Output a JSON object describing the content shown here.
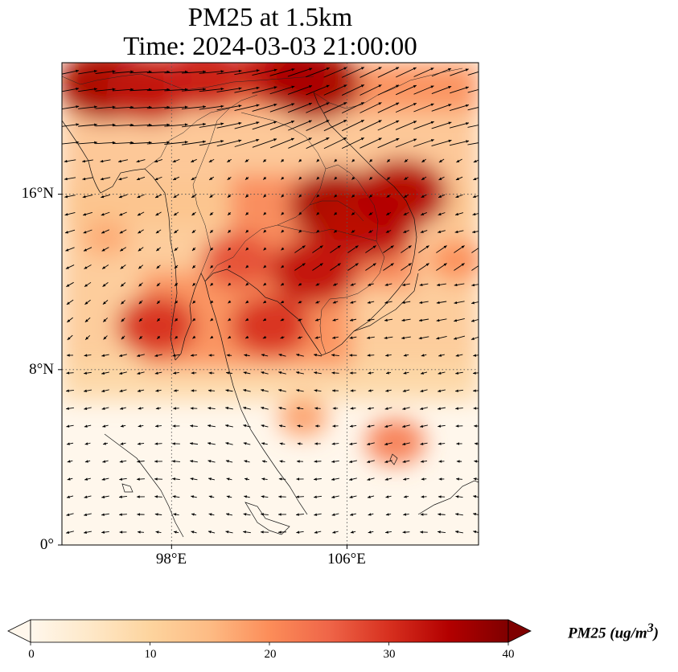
{
  "title_line1": "PM25 at 1.5km",
  "title_line2": "Time: 2024-03-03 21:00:00",
  "lat_ticks": [
    {
      "label": "16°N",
      "lat": 16
    },
    {
      "label": "8°N",
      "lat": 8
    },
    {
      "label": "0°",
      "lat": 0
    }
  ],
  "lon_ticks": [
    {
      "label": "98°E",
      "lon": 98
    },
    {
      "label": "106°E",
      "lon": 106
    }
  ],
  "map_extent": {
    "lon_min": 93,
    "lon_max": 112,
    "lat_min": 0,
    "lat_max": 22
  },
  "colorbar": {
    "label": "PM25 (ug/m",
    "label_sup": "3",
    "label_close": ")",
    "ticks": [
      "0",
      "10",
      "20",
      "30",
      "40"
    ],
    "min": 0,
    "max": 40,
    "extend": "both",
    "colormap": "OrRd",
    "colors": [
      "#fff7ec",
      "#fee8c8",
      "#fdd49e",
      "#fdbb84",
      "#fc8d59",
      "#ef6548",
      "#d7301f",
      "#b30000",
      "#7f0000"
    ]
  },
  "chart_data": {
    "type": "heatmap",
    "title": "PM25 at 1.5km / Time: 2024-03-03 21:00:00",
    "variable": "PM25",
    "units": "ug/m3",
    "vmin": 0,
    "vmax": 40,
    "grid": "dotted lat/lon gridlines",
    "overlay": "wind vector arrows (quiver)",
    "hotspots": [
      {
        "lon": 95.0,
        "lat": 21.0,
        "pm25": 36
      },
      {
        "lon": 97.0,
        "lat": 20.8,
        "pm25": 33
      },
      {
        "lon": 99.5,
        "lat": 21.3,
        "pm25": 32
      },
      {
        "lon": 103.0,
        "lat": 21.5,
        "pm25": 33
      },
      {
        "lon": 104.5,
        "lat": 21.0,
        "pm25": 36
      },
      {
        "lon": 105.5,
        "lat": 15.5,
        "pm25": 36
      },
      {
        "lon": 107.0,
        "lat": 14.5,
        "pm25": 34
      },
      {
        "lon": 108.5,
        "lat": 16.0,
        "pm25": 35
      },
      {
        "lon": 104.5,
        "lat": 12.5,
        "pm25": 33
      },
      {
        "lon": 102.5,
        "lat": 10.0,
        "pm25": 30
      },
      {
        "lon": 101.0,
        "lat": 13.0,
        "pm25": 27
      },
      {
        "lon": 97.3,
        "lat": 10.0,
        "pm25": 30
      },
      {
        "lon": 95.0,
        "lat": 14.0,
        "pm25": 17
      },
      {
        "lon": 108.2,
        "lat": 4.7,
        "pm25": 22
      },
      {
        "lon": 104.0,
        "lat": 5.8,
        "pm25": 18
      },
      {
        "lon": 111.0,
        "lat": 13.0,
        "pm25": 20
      }
    ]
  }
}
